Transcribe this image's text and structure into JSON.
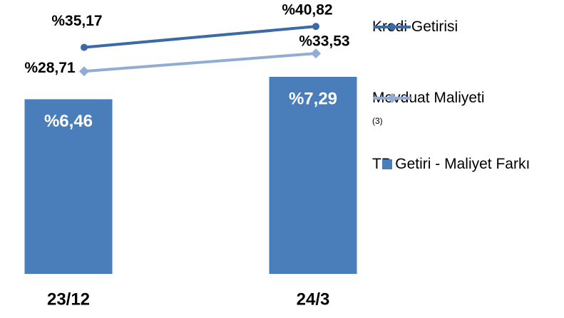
{
  "chart_data": {
    "type": "bar_line",
    "categories": [
      "23/12",
      "24/3"
    ],
    "ylim": [
      0,
      10
    ],
    "y2lim": [
      -26,
      47
    ],
    "series": [
      {
        "name": "Kredi Getirisi",
        "type": "line",
        "axis": "y2",
        "marker": "circle",
        "color": "#3d69a6",
        "values": [
          35.17,
          40.82
        ],
        "value_labels": [
          "%35,17",
          "%40,82"
        ]
      },
      {
        "name": "Mevduat Maliyeti",
        "name_note": "(3)",
        "type": "line",
        "axis": "y2",
        "marker": "diamond",
        "color": "#93acd6",
        "values": [
          28.71,
          33.53
        ],
        "value_labels": [
          "%28,71",
          "%33,53"
        ]
      },
      {
        "name": "TP Getiri - Maliyet Farkı",
        "type": "bar",
        "color": "#4a7ebb",
        "values": [
          6.46,
          7.29
        ],
        "value_labels": [
          "%6,46",
          "%7,29"
        ]
      }
    ]
  }
}
